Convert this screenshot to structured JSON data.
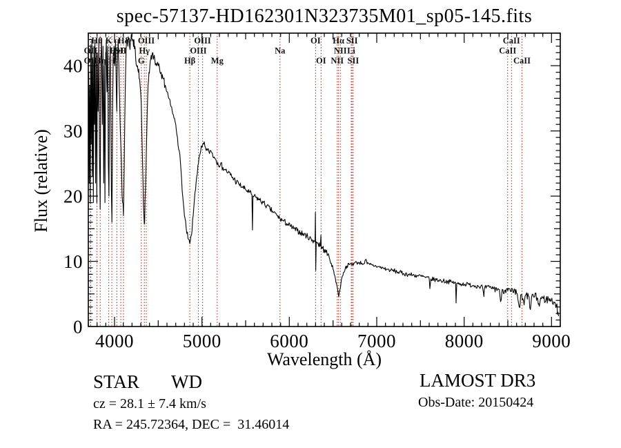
{
  "title": "spec-57137-HD162301N323735M01_sp05-145.fits",
  "axes": {
    "xlabel": "Wavelength (Å)",
    "ylabel": "Flux (relative)",
    "x_ticks": [
      4000,
      5000,
      6000,
      7000,
      8000,
      9000
    ],
    "y_ticks": [
      0,
      10,
      20,
      30,
      40
    ],
    "x_range": [
      3700,
      9100
    ],
    "y_range": [
      0,
      45
    ],
    "x_minor_step": 100,
    "y_minor_step": 1
  },
  "annotations": {
    "class": "STAR",
    "subclass": "WD",
    "cz": "cz = 28.1 ± 7.4 km/s",
    "radec": "RA = 245.72364, DEC =  31.46014",
    "survey": "LAMOST DR3",
    "obsdate": "Obs-Date: 20150424"
  },
  "line_markers": [
    {
      "label": "Hθ",
      "wavelength": 3799,
      "row": 1
    },
    {
      "label": "K",
      "wavelength": 3934,
      "row": 1
    },
    {
      "label": "Hδ",
      "wavelength": 4102,
      "row": 1
    },
    {
      "label": "OIII",
      "wavelength": 4363,
      "row": 1
    },
    {
      "label": "OIII",
      "wavelength": 5007,
      "row": 1
    },
    {
      "label": "OI",
      "wavelength": 6300,
      "row": 1
    },
    {
      "label": "Hα",
      "wavelength": 6563,
      "row": 1
    },
    {
      "label": "SII",
      "wavelength": 6717,
      "row": 1
    },
    {
      "label": "CaII",
      "wavelength": 8542,
      "row": 1
    },
    {
      "label": "OII",
      "wavelength": 3727,
      "row": 2
    },
    {
      "label": "HeI",
      "wavelength": 4026,
      "row": 2
    },
    {
      "label": "SII",
      "wavelength": 4072,
      "row": 2
    },
    {
      "label": "Hγ",
      "wavelength": 4341,
      "row": 2
    },
    {
      "label": "OIII",
      "wavelength": 4959,
      "row": 2
    },
    {
      "label": "Na",
      "wavelength": 5893,
      "row": 2
    },
    {
      "label": "NII",
      "wavelength": 6583,
      "row": 2
    },
    {
      "label": "Li",
      "wavelength": 6708,
      "row": 2
    },
    {
      "label": "CaII",
      "wavelength": 8498,
      "row": 2
    },
    {
      "label": "OII",
      "wavelength": 3727,
      "row": 3
    },
    {
      "label": "Hη",
      "wavelength": 3836,
      "row": 3
    },
    {
      "label": "H",
      "wavelength": 3969,
      "row": 3
    },
    {
      "label": "G",
      "wavelength": 4306,
      "row": 3
    },
    {
      "label": "Hβ",
      "wavelength": 4861,
      "row": 3
    },
    {
      "label": "Mg",
      "wavelength": 5175,
      "row": 3
    },
    {
      "label": "OI",
      "wavelength": 6363,
      "row": 3
    },
    {
      "label": "NII",
      "wavelength": 6548,
      "row": 3
    },
    {
      "label": "SII",
      "wavelength": 6731,
      "row": 3
    },
    {
      "label": "CaII",
      "wavelength": 8662,
      "row": 3
    }
  ],
  "chart_data": {
    "type": "line",
    "title": "spec-57137-HD162301N323735M01_sp05-145.fits",
    "xlabel": "Wavelength (Å)",
    "ylabel": "Flux (relative)",
    "xlim": [
      3700,
      9100
    ],
    "ylim": [
      0,
      45
    ],
    "grid": false,
    "line_color": "#000000",
    "marker_line_color": "#a33327",
    "series": [
      {
        "name": "spectrum",
        "points": [
          [
            3700,
            25
          ],
          [
            3705,
            39
          ],
          [
            3710,
            22
          ],
          [
            3716,
            37
          ],
          [
            3722,
            19
          ],
          [
            3728,
            43
          ],
          [
            3734,
            28
          ],
          [
            3740,
            44
          ],
          [
            3746,
            23
          ],
          [
            3752,
            41
          ],
          [
            3758,
            19
          ],
          [
            3764,
            43
          ],
          [
            3770,
            31
          ],
          [
            3776,
            44
          ],
          [
            3783,
            22
          ],
          [
            3790,
            42
          ],
          [
            3797,
            19
          ],
          [
            3804,
            42
          ],
          [
            3812,
            33
          ],
          [
            3820,
            44
          ],
          [
            3828,
            26
          ],
          [
            3836,
            18
          ],
          [
            3844,
            41
          ],
          [
            3852,
            44
          ],
          [
            3860,
            31
          ],
          [
            3868,
            43
          ],
          [
            3876,
            22
          ],
          [
            3883,
            40
          ],
          [
            3890,
            19
          ],
          [
            3898,
            42
          ],
          [
            3906,
            44
          ],
          [
            3914,
            36
          ],
          [
            3922,
            43
          ],
          [
            3929,
            25
          ],
          [
            3936,
            20
          ],
          [
            3943,
            38
          ],
          [
            3950,
            43
          ],
          [
            3958,
            31
          ],
          [
            3964,
            21
          ],
          [
            3970,
            16
          ],
          [
            3978,
            34
          ],
          [
            3986,
            42
          ],
          [
            3994,
            43
          ],
          [
            4002,
            40
          ],
          [
            4010,
            44
          ],
          [
            4018,
            38
          ],
          [
            4026,
            33
          ],
          [
            4034,
            42
          ],
          [
            4042,
            44
          ],
          [
            4050,
            40
          ],
          [
            4058,
            35
          ],
          [
            4066,
            30
          ],
          [
            4074,
            27
          ],
          [
            4082,
            23
          ],
          [
            4092,
            19
          ],
          [
            4102,
            17
          ],
          [
            4112,
            26
          ],
          [
            4122,
            36
          ],
          [
            4132,
            42
          ],
          [
            4142,
            44
          ],
          [
            4152,
            43
          ],
          [
            4162,
            44
          ],
          [
            4172,
            43
          ],
          [
            4182,
            44
          ],
          [
            4192,
            45
          ],
          [
            4202,
            44
          ],
          [
            4212,
            44
          ],
          [
            4222,
            44
          ],
          [
            4232,
            43
          ],
          [
            4242,
            41
          ],
          [
            4252,
            40
          ],
          [
            4262,
            40
          ],
          [
            4272,
            39
          ],
          [
            4282,
            38
          ],
          [
            4292,
            37
          ],
          [
            4306,
            34
          ],
          [
            4316,
            28
          ],
          [
            4326,
            22
          ],
          [
            4336,
            17
          ],
          [
            4344,
            16
          ],
          [
            4354,
            21
          ],
          [
            4364,
            27
          ],
          [
            4374,
            33
          ],
          [
            4384,
            37
          ],
          [
            4394,
            39
          ],
          [
            4404,
            40
          ],
          [
            4414,
            41
          ],
          [
            4424,
            41
          ],
          [
            4434,
            42
          ],
          [
            4444,
            41
          ],
          [
            4460,
            41
          ],
          [
            4480,
            40
          ],
          [
            4500,
            40
          ],
          [
            4520,
            39
          ],
          [
            4540,
            38
          ],
          [
            4560,
            38
          ],
          [
            4580,
            37
          ],
          [
            4600,
            36
          ],
          [
            4620,
            35
          ],
          [
            4640,
            34
          ],
          [
            4660,
            33
          ],
          [
            4680,
            32
          ],
          [
            4700,
            31
          ],
          [
            4720,
            29
          ],
          [
            4740,
            27
          ],
          [
            4760,
            24
          ],
          [
            4780,
            20
          ],
          [
            4800,
            17
          ],
          [
            4820,
            15
          ],
          [
            4840,
            13.5
          ],
          [
            4861,
            12.7
          ],
          [
            4880,
            14
          ],
          [
            4900,
            17
          ],
          [
            4920,
            20.5
          ],
          [
            4940,
            23
          ],
          [
            4960,
            25
          ],
          [
            4980,
            26.5
          ],
          [
            5000,
            27.5
          ],
          [
            5020,
            28
          ],
          [
            5040,
            27.5
          ],
          [
            5060,
            27
          ],
          [
            5080,
            26.8
          ],
          [
            5100,
            27
          ],
          [
            5120,
            26.5
          ],
          [
            5140,
            26
          ],
          [
            5160,
            25.6
          ],
          [
            5180,
            25.2
          ],
          [
            5210,
            24.8
          ],
          [
            5240,
            24.4
          ],
          [
            5270,
            24
          ],
          [
            5300,
            23.6
          ],
          [
            5340,
            23
          ],
          [
            5380,
            22.4
          ],
          [
            5420,
            21.9
          ],
          [
            5460,
            21.4
          ],
          [
            5500,
            21
          ],
          [
            5540,
            20.6
          ],
          [
            5572,
            20.2
          ],
          [
            5578,
            14.8
          ],
          [
            5584,
            20
          ],
          [
            5620,
            19.8
          ],
          [
            5660,
            19.4
          ],
          [
            5700,
            19
          ],
          [
            5740,
            18.5
          ],
          [
            5780,
            18
          ],
          [
            5820,
            17.5
          ],
          [
            5860,
            17
          ],
          [
            5896,
            16.5
          ],
          [
            5930,
            16.2
          ],
          [
            5970,
            15.8
          ],
          [
            6010,
            15.4
          ],
          [
            6050,
            15
          ],
          [
            6090,
            14.7
          ],
          [
            6130,
            14.4
          ],
          [
            6170,
            14.1
          ],
          [
            6210,
            13.8
          ],
          [
            6250,
            13.4
          ],
          [
            6280,
            13.2
          ],
          [
            6294,
            13
          ],
          [
            6298,
            17.5
          ],
          [
            6302,
            8.6
          ],
          [
            6308,
            13
          ],
          [
            6330,
            12.7
          ],
          [
            6355,
            12.4
          ],
          [
            6361,
            14
          ],
          [
            6366,
            11.9
          ],
          [
            6380,
            12
          ],
          [
            6400,
            11.8
          ],
          [
            6420,
            11.4
          ],
          [
            6440,
            11
          ],
          [
            6460,
            10.4
          ],
          [
            6480,
            9.7
          ],
          [
            6500,
            8.8
          ],
          [
            6520,
            7.8
          ],
          [
            6540,
            6.6
          ],
          [
            6552,
            5.7
          ],
          [
            6565,
            4.6
          ],
          [
            6578,
            5.6
          ],
          [
            6590,
            6.6
          ],
          [
            6605,
            7.7
          ],
          [
            6620,
            8.3
          ],
          [
            6640,
            8.9
          ],
          [
            6660,
            9.3
          ],
          [
            6685,
            9.5
          ],
          [
            6710,
            9.6
          ],
          [
            6740,
            9.7
          ],
          [
            6770,
            9.8
          ],
          [
            6800,
            9.8
          ],
          [
            6830,
            9.7
          ],
          [
            6860,
            9.7
          ],
          [
            6875,
            10.3
          ],
          [
            6890,
            9.6
          ],
          [
            6920,
            9.5
          ],
          [
            6950,
            9.4
          ],
          [
            6980,
            9.3
          ],
          [
            7010,
            9.2
          ],
          [
            7060,
            9
          ],
          [
            7110,
            8.8
          ],
          [
            7160,
            8.6
          ],
          [
            7210,
            8.5
          ],
          [
            7260,
            8.3
          ],
          [
            7310,
            8.1
          ],
          [
            7360,
            8
          ],
          [
            7410,
            7.9
          ],
          [
            7460,
            7.8
          ],
          [
            7510,
            7.7
          ],
          [
            7560,
            7.5
          ],
          [
            7600,
            7.35
          ],
          [
            7608,
            5.8
          ],
          [
            7620,
            7.3
          ],
          [
            7660,
            7.2
          ],
          [
            7710,
            7.1
          ],
          [
            7760,
            7
          ],
          [
            7810,
            6.9
          ],
          [
            7860,
            6.8
          ],
          [
            7902,
            6.7
          ],
          [
            7908,
            3.6
          ],
          [
            7916,
            6.6
          ],
          [
            7960,
            6.55
          ],
          [
            8010,
            6.5
          ],
          [
            8060,
            6.4
          ],
          [
            8110,
            6.3
          ],
          [
            8160,
            6.2
          ],
          [
            8210,
            6.1
          ],
          [
            8226,
            4.6
          ],
          [
            8236,
            6
          ],
          [
            8290,
            6
          ],
          [
            8340,
            5.9
          ],
          [
            8390,
            5.8
          ],
          [
            8424,
            4.1
          ],
          [
            8436,
            5.7
          ],
          [
            8470,
            5.6
          ],
          [
            8500,
            5.5
          ],
          [
            8530,
            5.4
          ],
          [
            8560,
            5.2
          ],
          [
            8600,
            5.1
          ],
          [
            8636,
            2.9
          ],
          [
            8652,
            4.9
          ],
          [
            8686,
            3.3
          ],
          [
            8702,
            4.8
          ],
          [
            8736,
            4.7
          ],
          [
            8758,
            2.6
          ],
          [
            8772,
            4.6
          ],
          [
            8806,
            4.6
          ],
          [
            8836,
            4.4
          ],
          [
            8860,
            3.1
          ],
          [
            8876,
            4.4
          ],
          [
            8906,
            4.3
          ],
          [
            8936,
            4.1
          ],
          [
            8966,
            4.2
          ],
          [
            8996,
            4
          ],
          [
            9026,
            3.8
          ],
          [
            9056,
            3.3
          ],
          [
            9080,
            1.6
          ]
        ]
      }
    ],
    "noise_segments": [
      [
        3700,
        4010,
        2.2
      ],
      [
        4010,
        4360,
        1.1
      ],
      [
        4360,
        4620,
        0.7
      ],
      [
        4620,
        4950,
        0.5
      ],
      [
        4950,
        5400,
        0.55
      ],
      [
        5400,
        6250,
        0.45
      ],
      [
        6250,
        6460,
        0.55
      ],
      [
        6460,
        6650,
        0.3
      ],
      [
        6650,
        7150,
        0.3
      ],
      [
        7150,
        8350,
        0.35
      ],
      [
        8350,
        9100,
        0.65
      ]
    ]
  }
}
